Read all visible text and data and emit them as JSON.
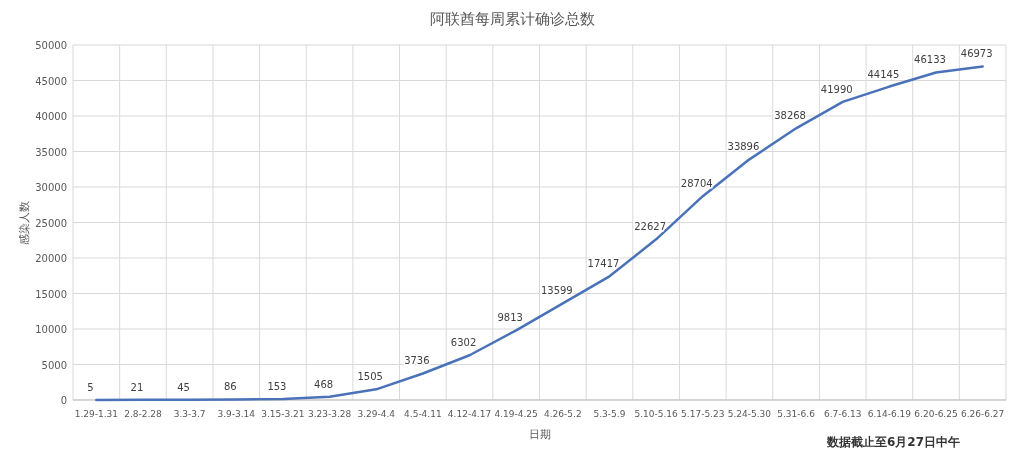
{
  "chart_data": {
    "type": "line",
    "title": "阿联酋每周累计确诊总数",
    "xlabel": "日期",
    "ylabel": "感染人数",
    "categories": [
      "1.29-1.31",
      "2.8-2.28",
      "3.3-3.7",
      "3.9-3.14",
      "3.15-3.21",
      "3.23-3.28",
      "3.29-4.4",
      "4.5-4.11",
      "4.12-4.17",
      "4.19-4.25",
      "4.26-5.2",
      "5.3-5.9",
      "5.10-5.16",
      "5.17-5.23",
      "5.24-5.30",
      "5.31-6.6",
      "6.7-6.13",
      "6.14-6.19",
      "6.20-6.25",
      "6.26-6.27"
    ],
    "series": [
      {
        "color": "#4a72b8",
        "values": [
          5,
          21,
          45,
          86,
          153,
          468,
          1505,
          3736,
          6302,
          9813,
          13599,
          17417,
          22627,
          28704,
          33896,
          38268,
          41990,
          44145,
          46133,
          46973
        ]
      }
    ],
    "ylim": [
      0,
      50000
    ],
    "yticks": [
      0,
      5000,
      10000,
      15000,
      20000,
      25000,
      30000,
      35000,
      40000,
      45000,
      50000
    ],
    "grid": true,
    "data_labels": true,
    "marker": "none",
    "line_style": "solid",
    "annotations": [
      "数据截止至6月27日中午"
    ]
  }
}
